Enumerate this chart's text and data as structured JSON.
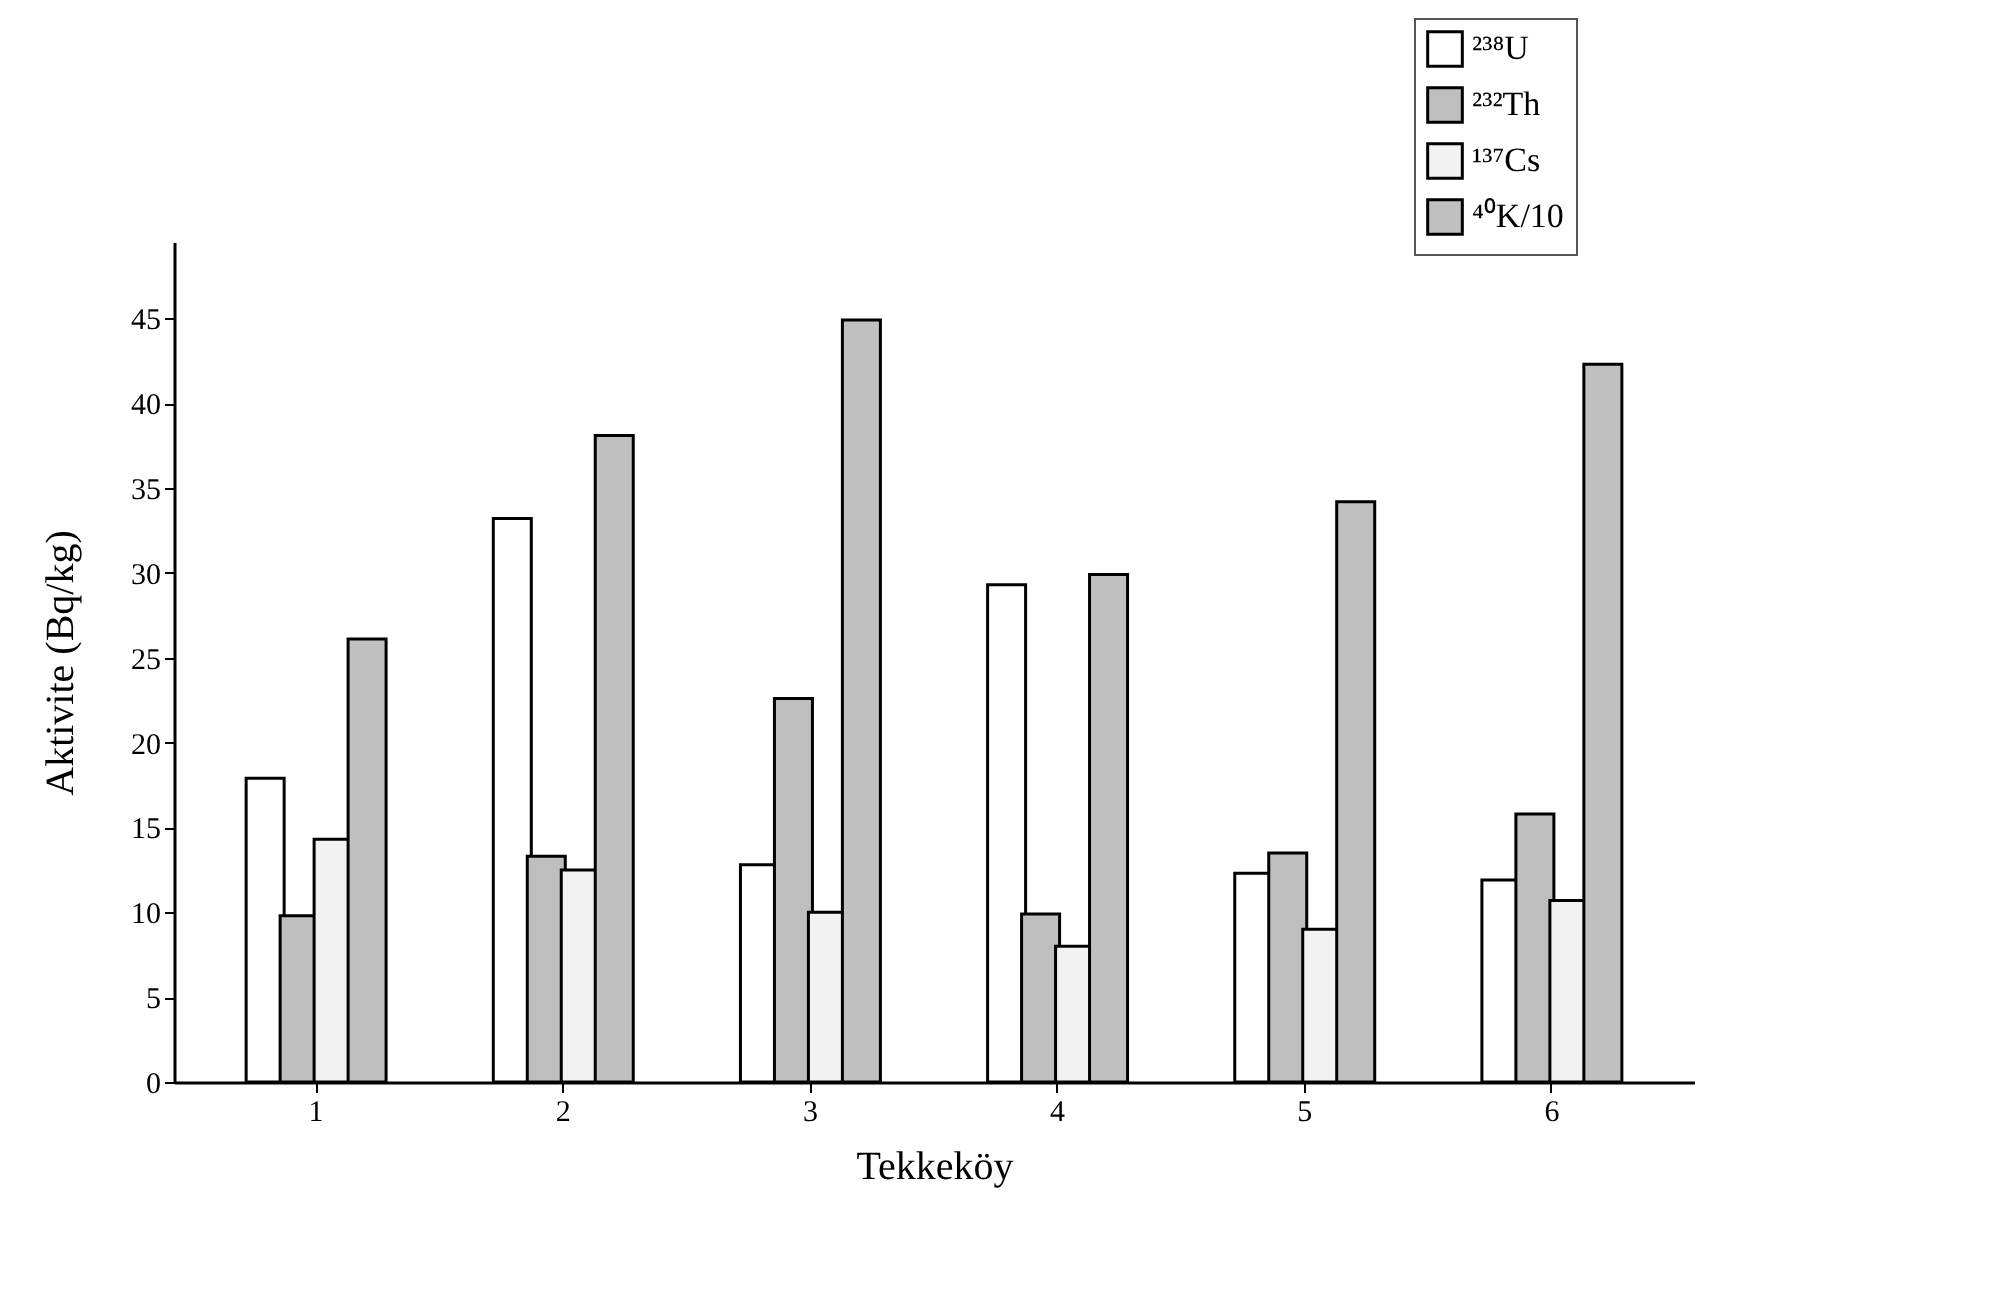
{
  "chart_data": {
    "type": "bar",
    "xlabel": "Tekkeköy",
    "ylabel": "Aktivite (Bq/kg)",
    "categories": [
      "1",
      "2",
      "3",
      "4",
      "5",
      "6"
    ],
    "series": [
      {
        "name": "²³⁸U",
        "color": "#ffffff",
        "values": [
          17.9,
          33.2,
          12.8,
          29.3,
          12.3,
          11.9
        ]
      },
      {
        "name": "²³²Th",
        "color": "#bebebe",
        "values": [
          9.8,
          13.3,
          22.6,
          9.9,
          13.5,
          15.8
        ]
      },
      {
        "name": "¹³⁷Cs",
        "color": "#f2f2f2",
        "values": [
          14.3,
          12.5,
          10.0,
          8.0,
          9.0,
          10.7
        ]
      },
      {
        "name": "⁴⁰K/10",
        "color": "#c0c0c0",
        "values": [
          26.1,
          38.1,
          44.9,
          29.9,
          34.2,
          42.3
        ]
      }
    ],
    "ylim": [
      0,
      49.5
    ],
    "yticks": [
      0,
      5,
      10,
      15,
      20,
      25,
      30,
      35,
      40,
      45
    ],
    "grid": false,
    "legend": "top right"
  }
}
